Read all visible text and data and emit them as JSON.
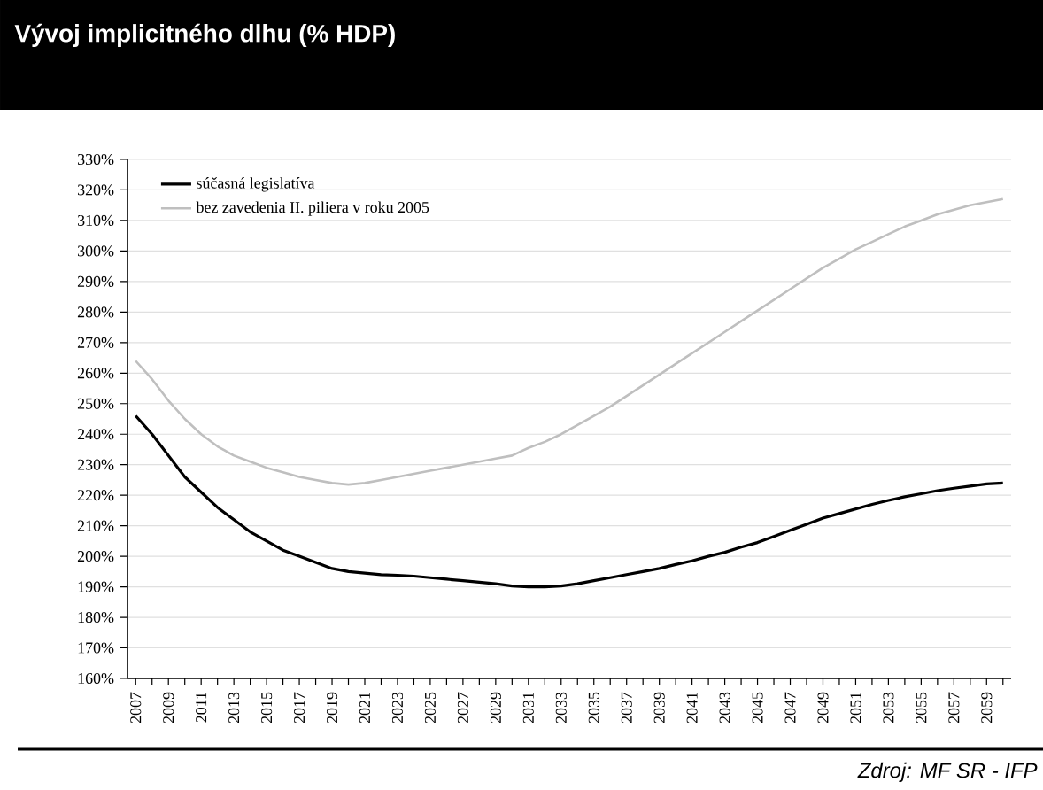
{
  "chart_data": {
    "type": "line",
    "title": "Vývoj implicitného dlhu (% HDP)",
    "annotations": [
      "Zdroj: MF SR - IFP"
    ],
    "x": [
      2007,
      2008,
      2009,
      2010,
      2011,
      2012,
      2013,
      2014,
      2015,
      2016,
      2017,
      2018,
      2019,
      2020,
      2021,
      2022,
      2023,
      2024,
      2025,
      2026,
      2027,
      2028,
      2029,
      2030,
      2031,
      2032,
      2033,
      2034,
      2035,
      2036,
      2037,
      2038,
      2039,
      2040,
      2041,
      2042,
      2043,
      2044,
      2045,
      2046,
      2047,
      2048,
      2049,
      2050,
      2051,
      2052,
      2053,
      2054,
      2055,
      2056,
      2057,
      2058,
      2059,
      2060
    ],
    "xlim": [
      2006.5,
      2060.5
    ],
    "xticks": [
      2007,
      {
        "value": 2008,
        "label": null
      },
      2009,
      {
        "value": 2010,
        "label": null
      },
      2011,
      {
        "value": 2012,
        "label": null
      },
      2013,
      {
        "value": 2014,
        "label": null
      },
      2015,
      {
        "value": 2016,
        "label": null
      },
      2017,
      {
        "value": 2018,
        "label": null
      },
      2019,
      {
        "value": 2020,
        "label": null
      },
      2021,
      {
        "value": 2022,
        "label": null
      },
      2023,
      {
        "value": 2024,
        "label": null
      },
      2025,
      {
        "value": 2026,
        "label": null
      },
      2027,
      {
        "value": 2028,
        "label": null
      },
      2029,
      {
        "value": 2030,
        "label": null
      },
      2031,
      {
        "value": 2032,
        "label": null
      },
      2033,
      {
        "value": 2034,
        "label": null
      },
      2035,
      {
        "value": 2036,
        "label": null
      },
      2037,
      {
        "value": 2038,
        "label": null
      },
      2039,
      {
        "value": 2040,
        "label": null
      },
      2041,
      {
        "value": 2042,
        "label": null
      },
      2043,
      {
        "value": 2044,
        "label": null
      },
      2045,
      {
        "value": 2046,
        "label": null
      },
      2047,
      {
        "value": 2048,
        "label": null
      },
      2049,
      {
        "value": 2050,
        "label": null
      },
      2051,
      {
        "value": 2052,
        "label": null
      },
      2053,
      {
        "value": 2054,
        "label": null
      },
      2055,
      {
        "value": 2056,
        "label": null
      },
      2057,
      {
        "value": 2058,
        "label": null
      },
      2059,
      {
        "value": 2060,
        "label": null
      }
    ],
    "ylim": [
      160,
      330
    ],
    "yticks": [
      {
        "value": 160,
        "label": "160%"
      },
      {
        "value": 170,
        "label": "170%"
      },
      {
        "value": 180,
        "label": "180%"
      },
      {
        "value": 190,
        "label": "190%"
      },
      {
        "value": 200,
        "label": "200%"
      },
      {
        "value": 210,
        "label": "210%"
      },
      {
        "value": 220,
        "label": "220%"
      },
      {
        "value": 230,
        "label": "230%"
      },
      {
        "value": 240,
        "label": "240%"
      },
      {
        "value": 250,
        "label": "250%"
      },
      {
        "value": 260,
        "label": "260%"
      },
      {
        "value": 270,
        "label": "270%"
      },
      {
        "value": 280,
        "label": "280%"
      },
      {
        "value": 290,
        "label": "290%"
      },
      {
        "value": 300,
        "label": "300%"
      },
      {
        "value": 310,
        "label": "310%"
      },
      {
        "value": 320,
        "label": "320%"
      },
      {
        "value": 330,
        "label": "330%"
      }
    ],
    "grid": "y",
    "legend": "top left",
    "series": [
      {
        "name": "súčasná legislatíva",
        "color": "#000000",
        "values": [
          246,
          240,
          233,
          226,
          221,
          216,
          212,
          208,
          205,
          202,
          200,
          198,
          196,
          195,
          194.5,
          194,
          193.8,
          193.5,
          193,
          192.5,
          192,
          191.5,
          191,
          190.3,
          190,
          190,
          190.3,
          191,
          192,
          193,
          194,
          195,
          196,
          197.3,
          198.5,
          200,
          201.3,
          203,
          204.5,
          206.5,
          208.5,
          210.5,
          212.5,
          214,
          215.5,
          217,
          218.3,
          219.5,
          220.5,
          221.5,
          222.3,
          223,
          223.7,
          224
        ]
      },
      {
        "name": "bez zavedenia II. piliera v roku 2005",
        "color": "#bfbfbf",
        "values": [
          264,
          258,
          251,
          245,
          240,
          236,
          233,
          231,
          229,
          227.5,
          226,
          225,
          224,
          223.5,
          224,
          225,
          226,
          227,
          228,
          229,
          230,
          231,
          232,
          233,
          235.5,
          237.5,
          240,
          243,
          246,
          249,
          252.5,
          256,
          259.5,
          263,
          266.5,
          270,
          273.5,
          277,
          280.5,
          284,
          287.5,
          291,
          294.5,
          297.5,
          300.5,
          303,
          305.5,
          308,
          310,
          312,
          313.5,
          315,
          316,
          317
        ]
      }
    ]
  }
}
